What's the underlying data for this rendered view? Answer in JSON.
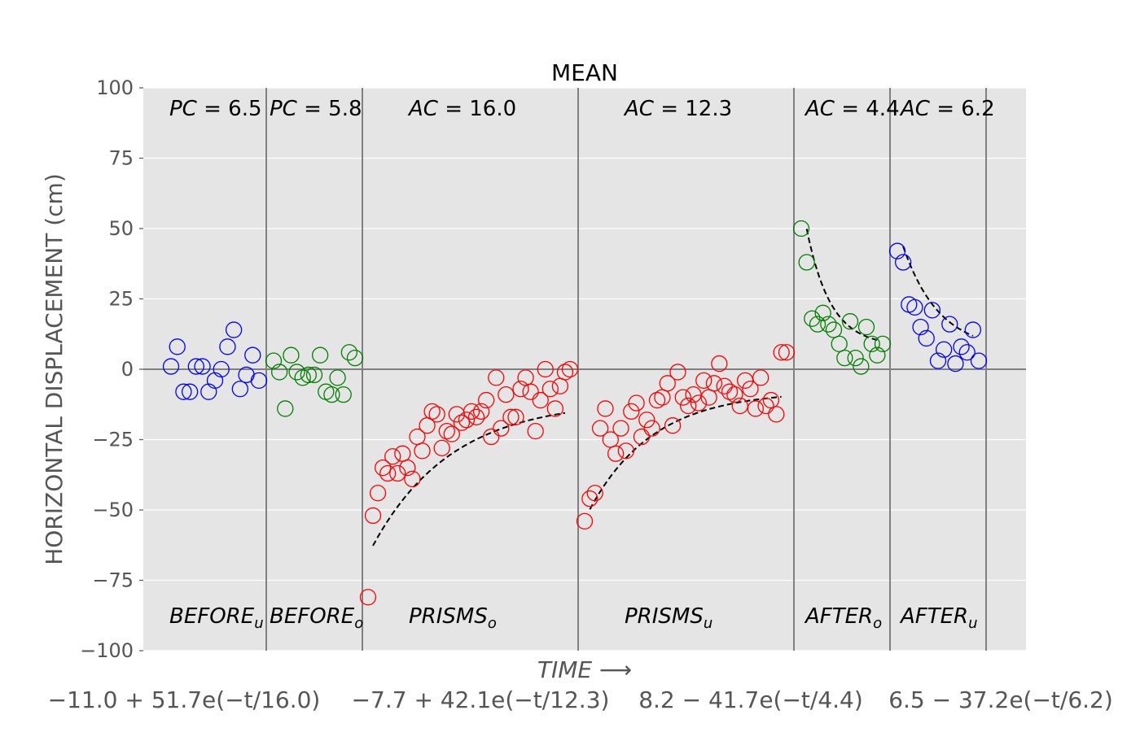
{
  "chart_data": {
    "type": "scatter",
    "title": "MEAN",
    "xlabel": "TIME ⟶",
    "ylabel": "HORIZONTAL DISPLACEMENT (cm)",
    "ylim": [
      -100,
      100
    ],
    "yticks": [
      "100",
      "75",
      "50",
      "25",
      "0",
      "−25",
      "−50",
      "−75",
      "−100"
    ],
    "grid": true,
    "formulas": [
      "−11.0 + 51.7e(−t/16.0)",
      "−7.7 + 42.1e(−t/12.3)",
      "8.2 − 41.7e(−t/4.4)",
      "6.5 − 37.2e(−t/6.2)"
    ],
    "segments": [
      {
        "label": "BEFORE",
        "subscript": "u",
        "constant_name": "PC",
        "constant_value": "6.5",
        "color": "#0000ff",
        "x": [
          1,
          2,
          3,
          4,
          5,
          6,
          7,
          8,
          9,
          10,
          11,
          12,
          13,
          14,
          15
        ],
        "values": [
          1,
          8,
          -8,
          -8,
          1,
          1,
          -8,
          -4,
          0,
          8,
          14,
          -7,
          -2,
          5,
          -4
        ]
      },
      {
        "label": "BEFORE",
        "subscript": "o",
        "constant_name": "PC",
        "constant_value": "5.8",
        "color": "#008000",
        "x": [
          1,
          2,
          3,
          4,
          5,
          6,
          7,
          8,
          9,
          10,
          11,
          12,
          13,
          14,
          15
        ],
        "values": [
          3,
          -1,
          -14,
          5,
          -1,
          -3,
          -2,
          -2,
          5,
          -8,
          -9,
          -3,
          -9,
          6,
          4
        ]
      },
      {
        "label": "PRISMS",
        "subscript": "o",
        "constant_name": "AC",
        "constant_value": "16.0",
        "color": "#ff0000",
        "x": [
          1,
          2,
          3,
          4,
          5,
          6,
          7,
          8,
          9,
          10,
          11,
          12,
          13,
          14,
          15,
          16,
          17,
          18,
          19,
          20,
          21,
          22,
          23,
          24,
          25,
          26,
          27,
          28,
          29,
          30,
          31,
          32,
          33,
          34,
          35,
          36,
          37,
          38,
          39,
          40,
          41,
          42
        ],
        "values": [
          -81,
          -52,
          -44,
          -35,
          -37,
          -31,
          -37,
          -30,
          -35,
          -39,
          -24,
          -29,
          -20,
          -15,
          -16,
          -28,
          -22,
          -23,
          -16,
          -19,
          -18,
          -15,
          -17,
          -15,
          -11,
          -24,
          -3,
          -21,
          -9,
          -17,
          -17,
          -7,
          -3,
          -8,
          -22,
          -11,
          0,
          -7,
          -14,
          -6,
          -1,
          0
        ]
      },
      {
        "label": "PRISMS",
        "subscript": "u",
        "constant_name": "AC",
        "constant_value": "12.3",
        "color": "#ff0000",
        "x": [
          1,
          2,
          3,
          4,
          5,
          6,
          7,
          8,
          9,
          10,
          11,
          12,
          13,
          14,
          15,
          16,
          17,
          18,
          19,
          20,
          21,
          22,
          23,
          24,
          25,
          26,
          27,
          28,
          29,
          30,
          31,
          32,
          33,
          34,
          35,
          36,
          37,
          38,
          39,
          40
        ],
        "values": [
          -54,
          -46,
          -44,
          -21,
          -14,
          -25,
          -30,
          -21,
          -29,
          -15,
          -12,
          -24,
          -18,
          -21,
          -11,
          -10,
          -5,
          -20,
          -1,
          -10,
          -13,
          -9,
          -12,
          -4,
          -10,
          -5,
          2,
          -6,
          -8,
          -9,
          -13,
          -4,
          -7,
          -14,
          -3,
          -13,
          -11,
          -16,
          6,
          6
        ]
      },
      {
        "label": "AFTER",
        "subscript": "o",
        "constant_name": "AC",
        "constant_value": "4.4",
        "color": "#008000",
        "x": [
          1,
          2,
          3,
          4,
          5,
          6,
          7,
          8,
          9,
          10,
          11,
          12,
          13,
          14,
          15,
          16
        ],
        "values": [
          50,
          38,
          18,
          16,
          20,
          16,
          14,
          9,
          4,
          17,
          4,
          1,
          15,
          9,
          5,
          9
        ]
      },
      {
        "label": "AFTER",
        "subscript": "u",
        "constant_name": "AC",
        "constant_value": "6.2",
        "color": "#0000ff",
        "x": [
          1,
          2,
          3,
          4,
          5,
          6,
          7,
          8,
          9,
          10,
          11,
          12,
          13,
          14,
          15
        ],
        "values": [
          42,
          38,
          23,
          22,
          15,
          11,
          21,
          3,
          7,
          16,
          2,
          8,
          6,
          14,
          3
        ]
      }
    ]
  }
}
